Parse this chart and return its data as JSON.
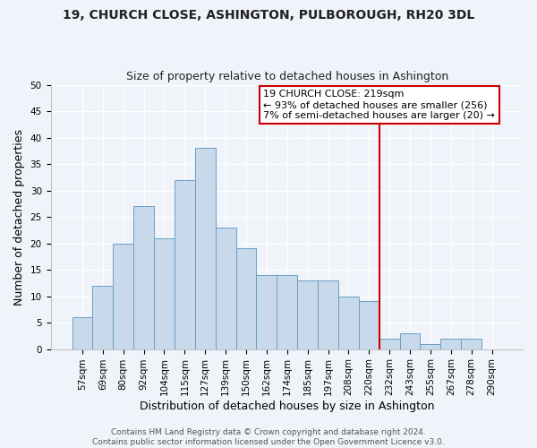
{
  "title1": "19, CHURCH CLOSE, ASHINGTON, PULBOROUGH, RH20 3DL",
  "title2": "Size of property relative to detached houses in Ashington",
  "xlabel": "Distribution of detached houses by size in Ashington",
  "ylabel": "Number of detached properties",
  "bin_labels": [
    "57sqm",
    "69sqm",
    "80sqm",
    "92sqm",
    "104sqm",
    "115sqm",
    "127sqm",
    "139sqm",
    "150sqm",
    "162sqm",
    "174sqm",
    "185sqm",
    "197sqm",
    "208sqm",
    "220sqm",
    "232sqm",
    "243sqm",
    "255sqm",
    "267sqm",
    "278sqm",
    "290sqm"
  ],
  "bar_heights": [
    6,
    12,
    20,
    27,
    21,
    32,
    38,
    23,
    19,
    14,
    14,
    13,
    13,
    10,
    9,
    2,
    3,
    1,
    2,
    2,
    0
  ],
  "bar_color": "#c8d9ec",
  "bar_edge_color": "#6a9ec5",
  "vline_index": 14,
  "vline_color": "#cc0000",
  "annotation_text": "19 CHURCH CLOSE: 219sqm\n← 93% of detached houses are smaller (256)\n7% of semi-detached houses are larger (20) →",
  "annotation_box_color": "#ffffff",
  "annotation_box_edge": "#cc0000",
  "footer_text": "Contains HM Land Registry data © Crown copyright and database right 2024.\nContains public sector information licensed under the Open Government Licence v3.0.",
  "ylim": [
    0,
    50
  ],
  "yticks": [
    0,
    5,
    10,
    15,
    20,
    25,
    30,
    35,
    40,
    45,
    50
  ],
  "bg_color": "#f0f4fa",
  "plot_bg_color": "#f0f4fa",
  "grid_color": "#ffffff",
  "title1_fontsize": 10,
  "title2_fontsize": 9,
  "tick_fontsize": 7.5,
  "ylabel_fontsize": 9,
  "xlabel_fontsize": 9,
  "annotation_fontsize": 8,
  "footer_fontsize": 6.5
}
